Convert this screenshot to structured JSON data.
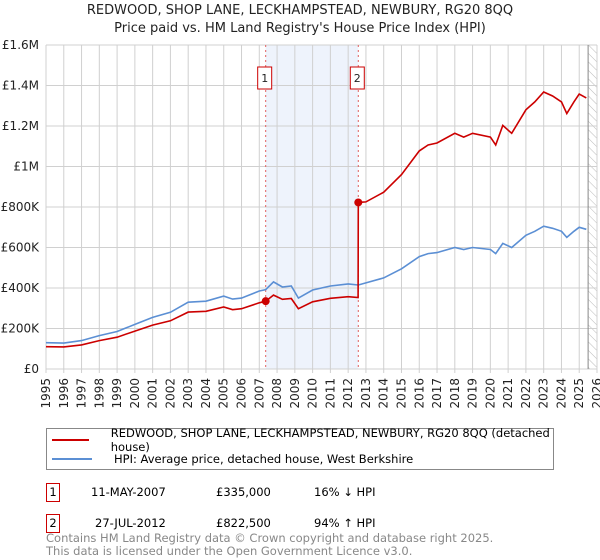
{
  "chart_data": {
    "type": "line",
    "title": "REDWOOD, SHOP LANE, LECKHAMPSTEAD, NEWBURY, RG20 8QQ",
    "subtitle": "Price paid vs. HM Land Registry's House Price Index (HPI)",
    "xlim": [
      1995,
      2026
    ],
    "ylim": [
      0,
      1600000
    ],
    "x_ticks": [
      "1995",
      "1996",
      "1997",
      "1998",
      "1999",
      "2000",
      "2001",
      "2002",
      "2003",
      "2004",
      "2005",
      "2006",
      "2007",
      "2008",
      "2009",
      "2010",
      "2011",
      "2012",
      "2013",
      "2014",
      "2015",
      "2016",
      "2017",
      "2018",
      "2019",
      "2020",
      "2021",
      "2022",
      "2023",
      "2024",
      "2025",
      "2026"
    ],
    "y_ticks": [
      {
        "v": 0,
        "label": "£0"
      },
      {
        "v": 200000,
        "label": "£200K"
      },
      {
        "v": 400000,
        "label": "£400K"
      },
      {
        "v": 600000,
        "label": "£600K"
      },
      {
        "v": 800000,
        "label": "£800K"
      },
      {
        "v": 1000000,
        "label": "£1M"
      },
      {
        "v": 1200000,
        "label": "£1.2M"
      },
      {
        "v": 1400000,
        "label": "£1.4M"
      },
      {
        "v": 1600000,
        "label": "£1.6M"
      }
    ],
    "grid": true,
    "shaded_range": [
      2007.36,
      2012.57
    ],
    "future_hatch_from": 2025.5,
    "series": [
      {
        "name": "REDWOOD, SHOP LANE, LECKHAMPSTEAD, NEWBURY, RG20 8QQ (detached house)",
        "color": "#cc0000",
        "x": [
          1995,
          1996,
          1997,
          1998,
          1999,
          2000,
          2001,
          2002,
          2003,
          2004,
          2005,
          2005.5,
          2006,
          2007,
          2007.36,
          2007.8,
          2008.3,
          2008.8,
          2009.2,
          2010,
          2011,
          2012,
          2012.56,
          2012.57,
          2013,
          2014,
          2015,
          2016,
          2016.5,
          2017,
          2018,
          2018.5,
          2019,
          2020,
          2020.3,
          2020.7,
          2021.2,
          2022,
          2022.5,
          2023,
          2023.5,
          2024,
          2024.3,
          2024.7,
          2025,
          2025.4
        ],
        "y": [
          110000,
          109000,
          119000,
          140000,
          157000,
          187000,
          217000,
          238000,
          281000,
          285000,
          306000,
          293000,
          298000,
          327000,
          335000,
          365000,
          344000,
          348000,
          298000,
          332000,
          349000,
          357000,
          353000,
          822500,
          825000,
          873000,
          960000,
          1077000,
          1106000,
          1116000,
          1164000,
          1145000,
          1164000,
          1145000,
          1106000,
          1203000,
          1164000,
          1280000,
          1319000,
          1368000,
          1348000,
          1319000,
          1261000,
          1319000,
          1358000,
          1339000
        ]
      },
      {
        "name": "HPI: Average price, detached house, West Berkshire",
        "color": "#5b8fd4",
        "x": [
          1995,
          1996,
          1997,
          1998,
          1999,
          2000,
          2001,
          2002,
          2003,
          2004,
          2005,
          2005.5,
          2006,
          2007,
          2007.36,
          2007.8,
          2008.3,
          2008.8,
          2009.2,
          2010,
          2011,
          2012,
          2012.56,
          2012.57,
          2013,
          2014,
          2015,
          2016,
          2016.5,
          2017,
          2018,
          2018.5,
          2019,
          2020,
          2020.3,
          2020.7,
          2021.2,
          2022,
          2022.5,
          2023,
          2023.5,
          2024,
          2024.3,
          2024.7,
          2025,
          2025.4
        ],
        "y": [
          130000,
          128000,
          140000,
          165000,
          185000,
          220000,
          255000,
          280000,
          330000,
          335000,
          360000,
          345000,
          350000,
          385000,
          392000,
          430000,
          405000,
          410000,
          350000,
          390000,
          410000,
          420000,
          415000,
          415000,
          425000,
          450000,
          495000,
          555000,
          570000,
          575000,
          600000,
          590000,
          600000,
          590000,
          570000,
          620000,
          600000,
          660000,
          680000,
          705000,
          695000,
          680000,
          650000,
          680000,
          700000,
          690000
        ]
      }
    ],
    "markers": [
      {
        "id": "1",
        "x": 2007.36,
        "y": 335000
      },
      {
        "id": "2",
        "x": 2012.57,
        "y": 822500
      }
    ]
  },
  "legend": {
    "red": "REDWOOD, SHOP LANE, LECKHAMPSTEAD, NEWBURY, RG20 8QQ (detached house)",
    "blue": "HPI: Average price, detached house, West Berkshire"
  },
  "transactions": [
    {
      "id": "1",
      "date": "11-MAY-2007",
      "price": "£335,000",
      "hpi": "16% ↓ HPI"
    },
    {
      "id": "2",
      "date": "27-JUL-2012",
      "price": "£822,500",
      "hpi": "94% ↑ HPI"
    }
  ],
  "footer": [
    "Contains HM Land Registry data © Crown copyright and database right 2025.",
    "This data is licensed under the Open Government Licence v3.0."
  ]
}
